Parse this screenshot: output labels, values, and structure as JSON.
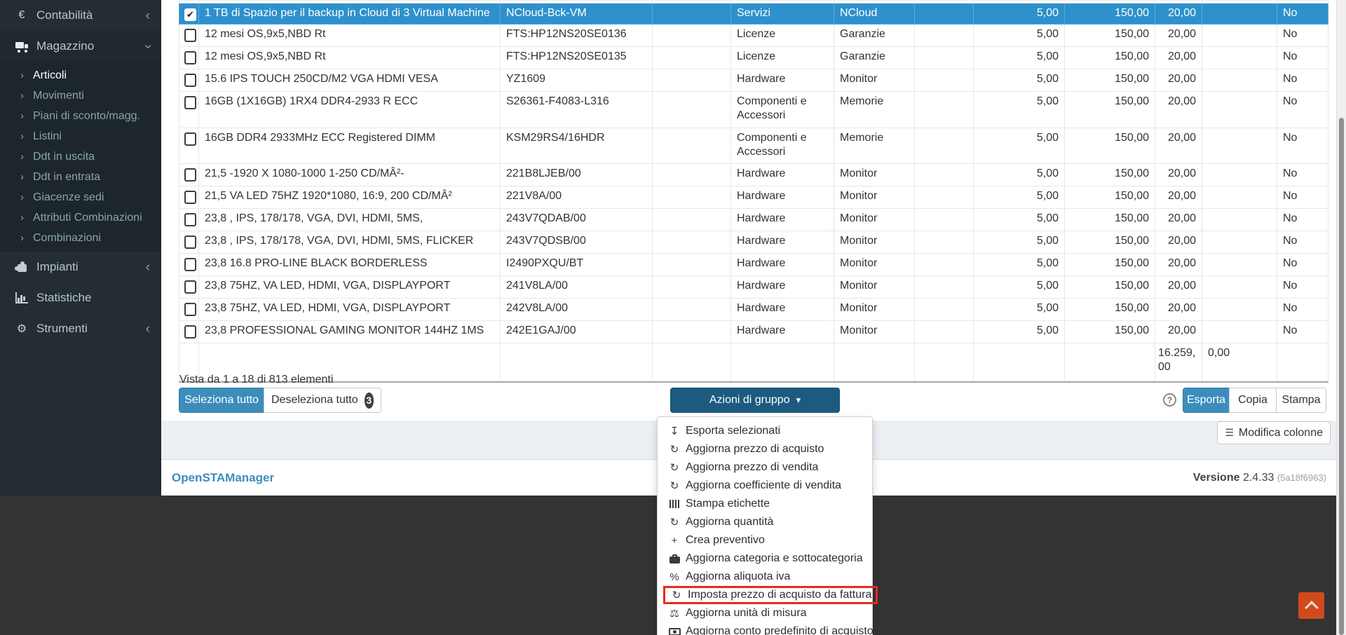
{
  "colors": {
    "accent_blue": "#3c8dbc",
    "selected_row_blue": "#2e91cc",
    "group_button_navy": "#1c5a80",
    "highlight_red": "#e52b20",
    "back_top_orange": "#d04a1d",
    "sidebar_bg": "#232d33",
    "bottom_band": "#333333",
    "content_bg": "#ecf0f5"
  },
  "sidebar": {
    "sections": [
      {
        "label": "Contabilità",
        "icon": "euro-icon",
        "chevron": "left",
        "expanded": false
      },
      {
        "label": "Magazzino",
        "icon": "truck-icon",
        "chevron": "down",
        "expanded": true,
        "items": [
          "Articoli",
          "Movimenti",
          "Piani di sconto/magg.",
          "Listini",
          "Ddt in uscita",
          "Ddt in entrata",
          "Giacenze sedi",
          "Attributi Combinazioni",
          "Combinazioni"
        ],
        "active_item": "Articoli"
      },
      {
        "label": "Impianti",
        "icon": "puzzle-icon",
        "chevron": "left",
        "expanded": false
      },
      {
        "label": "Statistiche",
        "icon": "chart-icon",
        "chevron": "none",
        "expanded": false
      },
      {
        "label": "Strumenti",
        "icon": "gear-icon",
        "chevron": "left",
        "expanded": false
      }
    ]
  },
  "table": {
    "rows": [
      {
        "selected": true,
        "checked": true,
        "description": "1 TB di Spazio per il backup in Cloud di 3 Virtual Machine",
        "code": "NCloud-Bck-VM",
        "category": "Servizi",
        "subcategory": "NCloud",
        "qty": "5,00",
        "price": "150,00",
        "vat": "20,00",
        "flag": "No"
      },
      {
        "selected": false,
        "checked": false,
        "description": "12 mesi OS,9x5,NBD Rt",
        "code": "FTS:HP12NS20SE0136",
        "category": "Licenze",
        "subcategory": "Garanzie",
        "qty": "5,00",
        "price": "150,00",
        "vat": "20,00",
        "flag": "No"
      },
      {
        "selected": false,
        "checked": false,
        "description": "12 mesi OS,9x5,NBD Rt",
        "code": "FTS:HP12NS20SE0135",
        "category": "Licenze",
        "subcategory": "Garanzie",
        "qty": "5,00",
        "price": "150,00",
        "vat": "20,00",
        "flag": "No"
      },
      {
        "selected": false,
        "checked": false,
        "description": "15.6 IPS TOUCH 250CD/M2 VGA HDMI VESA",
        "code": "YZ1609",
        "category": "Hardware",
        "subcategory": "Monitor",
        "qty": "5,00",
        "price": "150,00",
        "vat": "20,00",
        "flag": "No"
      },
      {
        "selected": false,
        "checked": false,
        "description": "16GB (1X16GB) 1RX4 DDR4-2933 R ECC",
        "code": "S26361-F4083-L316",
        "category": "Componenti e Accessori",
        "subcategory": "Memorie",
        "qty": "5,00",
        "price": "150,00",
        "vat": "20,00",
        "flag": "No"
      },
      {
        "selected": false,
        "checked": false,
        "description": "16GB DDR4 2933MHz ECC Registered DIMM",
        "code": "KSM29RS4/16HDR",
        "category": "Componenti e Accessori",
        "subcategory": "Memorie",
        "qty": "5,00",
        "price": "150,00",
        "vat": "20,00",
        "flag": "No"
      },
      {
        "selected": false,
        "checked": false,
        "description": "21,5 -1920 X 1080-1000 1-250 CD/MÂ²-",
        "code": "221B8LJEB/00",
        "category": "Hardware",
        "subcategory": "Monitor",
        "qty": "5,00",
        "price": "150,00",
        "vat": "20,00",
        "flag": "No"
      },
      {
        "selected": false,
        "checked": false,
        "description": "21,5 VA LED 75HZ 1920*1080, 16:9, 200 CD/MÂ²",
        "code": "221V8A/00",
        "category": "Hardware",
        "subcategory": "Monitor",
        "qty": "5,00",
        "price": "150,00",
        "vat": "20,00",
        "flag": "No"
      },
      {
        "selected": false,
        "checked": false,
        "description": "23,8 , IPS, 178/178, VGA, DVI, HDMI, 5MS,",
        "code": "243V7QDAB/00",
        "category": "Hardware",
        "subcategory": "Monitor",
        "qty": "5,00",
        "price": "150,00",
        "vat": "20,00",
        "flag": "No"
      },
      {
        "selected": false,
        "checked": false,
        "description": "23,8 , IPS, 178/178, VGA, DVI, HDMI, 5MS, FLICKER",
        "code": "243V7QDSB/00",
        "category": "Hardware",
        "subcategory": "Monitor",
        "qty": "5,00",
        "price": "150,00",
        "vat": "20,00",
        "flag": "No"
      },
      {
        "selected": false,
        "checked": false,
        "description": "23,8 16.8 PRO-LINE BLACK BORDERLESS",
        "code": "I2490PXQU/BT",
        "category": "Hardware",
        "subcategory": "Monitor",
        "qty": "5,00",
        "price": "150,00",
        "vat": "20,00",
        "flag": "No"
      },
      {
        "selected": false,
        "checked": false,
        "description": "23,8 75HZ, VA LED, HDMI, VGA, DISPLAYPORT",
        "code": "241V8LA/00",
        "category": "Hardware",
        "subcategory": "Monitor",
        "qty": "5,00",
        "price": "150,00",
        "vat": "20,00",
        "flag": "No"
      },
      {
        "selected": false,
        "checked": false,
        "description": "23,8 75HZ, VA LED, HDMI, VGA, DISPLAYPORT",
        "code": "242V8LA/00",
        "category": "Hardware",
        "subcategory": "Monitor",
        "qty": "5,00",
        "price": "150,00",
        "vat": "20,00",
        "flag": "No"
      },
      {
        "selected": false,
        "checked": false,
        "description": "23,8 PROFESSIONAL GAMING MONITOR 144HZ 1MS",
        "code": "242E1GAJ/00",
        "category": "Hardware",
        "subcategory": "Monitor",
        "qty": "5,00",
        "price": "150,00",
        "vat": "20,00",
        "flag": "No"
      }
    ],
    "totals": {
      "vat_total": "16.259,00",
      "extra_total": "0,00"
    }
  },
  "pagination": {
    "info": "Vista da 1 a 18 di 813 elementi"
  },
  "buttons": {
    "select_all": "Seleziona tutto",
    "deselect_all": "Deseleziona tutto",
    "deselect_count": "3",
    "group_actions": "Azioni di gruppo",
    "export": "Esporta",
    "copy": "Copia",
    "print": "Stampa",
    "edit_columns": "Modifica colonne"
  },
  "dropdown": {
    "items": [
      {
        "icon": "download-icon",
        "label": "Esporta selezionati",
        "highlighted": false
      },
      {
        "icon": "refresh-icon",
        "label": "Aggiorna prezzo di acquisto",
        "highlighted": false
      },
      {
        "icon": "refresh-icon",
        "label": "Aggiorna prezzo di vendita",
        "highlighted": false
      },
      {
        "icon": "refresh-icon",
        "label": "Aggiorna coefficiente di vendita",
        "highlighted": false
      },
      {
        "icon": "barcode-icon",
        "label": "Stampa etichette",
        "highlighted": false
      },
      {
        "icon": "refresh-icon",
        "label": "Aggiorna quantità",
        "highlighted": false
      },
      {
        "icon": "plus-icon",
        "label": "Crea preventivo",
        "highlighted": false
      },
      {
        "icon": "briefcase-icon",
        "label": "Aggiorna categoria e sottocategoria",
        "highlighted": false
      },
      {
        "icon": "percent-icon",
        "label": "Aggiorna aliquota iva",
        "highlighted": false
      },
      {
        "icon": "refresh-icon",
        "label": "Imposta prezzo di acquisto da fattura",
        "highlighted": true
      },
      {
        "icon": "scale-icon",
        "label": "Aggiorna unità di misura",
        "highlighted": false
      },
      {
        "icon": "banknote-icon",
        "label": "Aggiorna conto predefinito di acquisto",
        "highlighted": false
      }
    ]
  },
  "footer": {
    "app_name": "OpenSTAManager",
    "version_label": "Versione",
    "version": "2.4.33",
    "build": "(5a18f6963)"
  }
}
